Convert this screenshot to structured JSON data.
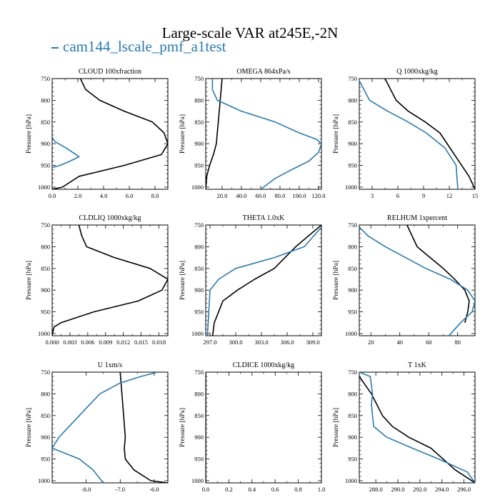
{
  "title": "Large-scale VAR at245E,-2N",
  "legend": {
    "label": "cam144_lscale_pmf_a1test",
    "color": "#2a7ab0"
  },
  "colors": {
    "black_series": "#000000",
    "blue_series": "#2a7ab0"
  },
  "chart_data": [
    {
      "type": "line",
      "title": "CLOUD  100xfraction",
      "ylabel": "Pressure [hPa]",
      "xlim": [
        0.0,
        9.0
      ],
      "ylim": [
        1005,
        750
      ],
      "xticks": [
        0.0,
        2.0,
        4.0,
        6.0,
        8.0
      ],
      "xtick_labels": [
        "0.0",
        "2.0",
        "4.0",
        "6.0",
        "8.0"
      ],
      "yticks": [
        750,
        800,
        850,
        900,
        950,
        1000
      ],
      "ytick_labels": [
        "750",
        "800",
        "850",
        "900",
        "950",
        "1000"
      ],
      "series": [
        {
          "name": "black",
          "color": "#000000",
          "x": [
            2.2,
            2.6,
            3.7,
            5.6,
            7.8,
            8.7,
            9.0,
            8.5,
            5.6,
            2.1,
            0.8,
            0.0
          ],
          "y": [
            750,
            775,
            800,
            825,
            850,
            875,
            900,
            925,
            950,
            975,
            1000,
            1005
          ]
        },
        {
          "name": "cam144_lscale_pmf_a1test",
          "color": "#2a7ab0",
          "x": [
            0.0,
            0.2,
            1.1,
            2.1,
            1.4,
            0.6,
            0.0
          ],
          "y": [
            885,
            895,
            910,
            930,
            940,
            950,
            955
          ]
        }
      ]
    },
    {
      "type": "line",
      "title": "OMEGA  864xPa/s",
      "ylabel": "Pressure [hPa]",
      "xlim": [
        3.0,
        123.0
      ],
      "ylim": [
        1005,
        750
      ],
      "xticks": [
        20.0,
        40.0,
        60.0,
        80.0,
        100.0,
        120.0
      ],
      "xtick_labels": [
        "20.0",
        "40.0",
        "60.0",
        "80.0",
        "100.0",
        "120.0"
      ],
      "yticks": [
        750,
        800,
        850,
        900,
        950,
        1000
      ],
      "ytick_labels": [
        "750",
        "800",
        "850",
        "900",
        "950",
        "1000"
      ],
      "series": [
        {
          "name": "black",
          "color": "#000000",
          "x": [
            20.0,
            18.0,
            16.0,
            15.0,
            14.0,
            11.0,
            7.0,
            4.0,
            3.0
          ],
          "y": [
            750,
            800,
            850,
            875,
            900,
            925,
            950,
            975,
            1005
          ]
        },
        {
          "name": "cam144_lscale_pmf_a1test",
          "color": "#2a7ab0",
          "x": [
            10.0,
            10.0,
            15.0,
            40.0,
            75.0,
            100.0,
            118.0,
            123.0,
            120.0,
            110.0,
            92.0,
            75.0,
            60.0
          ],
          "y": [
            750,
            775,
            800,
            825,
            850,
            875,
            890,
            900,
            920,
            940,
            960,
            980,
            1005
          ]
        }
      ]
    },
    {
      "type": "line",
      "title": "Q  1000xkg/kg",
      "ylabel": "Pressure [hPa]",
      "xlim": [
        1.5,
        15.0
      ],
      "ylim": [
        1005,
        750
      ],
      "xticks": [
        3,
        6,
        9,
        12,
        15
      ],
      "xtick_labels": [
        "3",
        "6",
        "9",
        "12",
        "15"
      ],
      "yticks": [
        750,
        800,
        850,
        900,
        950,
        1000
      ],
      "ytick_labels": [
        "750",
        "800",
        "850",
        "900",
        "950",
        "1000"
      ],
      "series": [
        {
          "name": "black",
          "color": "#000000",
          "x": [
            4.5,
            5.8,
            7.2,
            9.2,
            10.9,
            12.6,
            14.3,
            15.0
          ],
          "y": [
            750,
            800,
            825,
            850,
            875,
            925,
            975,
            1005
          ]
        },
        {
          "name": "cam144_lscale_pmf_a1test",
          "color": "#2a7ab0",
          "x": [
            1.5,
            2.7,
            4.8,
            7.2,
            9.3,
            11.5,
            12.8,
            12.9,
            13.0
          ],
          "y": [
            755,
            800,
            825,
            850,
            875,
            910,
            950,
            980,
            1005
          ]
        }
      ]
    },
    {
      "type": "line",
      "title": "CLDLIQ  1000xkg/kg",
      "ylabel": "Pressure [hPa]",
      "xlim": [
        0.0,
        0.0195
      ],
      "ylim": [
        1005,
        750
      ],
      "xticks": [
        0.0,
        0.003,
        0.006,
        0.009,
        0.012,
        0.015,
        0.018
      ],
      "xtick_labels": [
        "0.000",
        "0.003",
        "0.006",
        "0.009",
        "0.012",
        "0.015",
        "0.018"
      ],
      "yticks": [
        750,
        800,
        850,
        900,
        950,
        1000
      ],
      "ytick_labels": [
        "750",
        "800",
        "850",
        "900",
        "950",
        "1000"
      ],
      "series": [
        {
          "name": "black",
          "color": "#000000",
          "x": [
            0.0045,
            0.005,
            0.0058,
            0.0105,
            0.0165,
            0.0195,
            0.0185,
            0.0145,
            0.007,
            0.0015,
            0.0003,
            0.0
          ],
          "y": [
            750,
            775,
            800,
            825,
            850,
            875,
            900,
            925,
            950,
            975,
            985,
            1005
          ]
        }
      ]
    },
    {
      "type": "line",
      "title": "THETA  1.0xK",
      "ylabel": "Pressure [hPa]",
      "xlim": [
        296.5,
        310.0
      ],
      "ylim": [
        1005,
        750
      ],
      "xticks": [
        297.0,
        300.0,
        303.0,
        306.0,
        309.0
      ],
      "xtick_labels": [
        "297.0",
        "300.0",
        "303.0",
        "306.0",
        "309.0"
      ],
      "yticks": [
        750,
        800,
        850,
        900,
        950,
        1000
      ],
      "ytick_labels": [
        "750",
        "800",
        "850",
        "900",
        "950",
        "1000"
      ],
      "series": [
        {
          "name": "black",
          "color": "#000000",
          "x": [
            310.0,
            307.0,
            304.5,
            302.2,
            300.2,
            298.5,
            297.5,
            297.3
          ],
          "y": [
            750,
            800,
            850,
            875,
            900,
            925,
            975,
            1005
          ]
        },
        {
          "name": "cam144_lscale_pmf_a1test",
          "color": "#2a7ab0",
          "x": [
            310.0,
            308.0,
            304.5,
            300.0,
            298.0,
            297.0,
            296.7
          ],
          "y": [
            755,
            800,
            825,
            850,
            875,
            900,
            1005
          ]
        }
      ]
    },
    {
      "type": "line",
      "title": "RELHUM  1xpercent",
      "ylabel": "Pressure [hPa]",
      "xlim": [
        12.0,
        92.0
      ],
      "ylim": [
        1005,
        750
      ],
      "xticks": [
        20,
        40,
        60,
        80
      ],
      "xtick_labels": [
        "20",
        "40",
        "60",
        "80"
      ],
      "yticks": [
        750,
        800,
        850,
        900,
        950,
        1000
      ],
      "ytick_labels": [
        "750",
        "800",
        "850",
        "900",
        "950",
        "1000"
      ],
      "series": [
        {
          "name": "black",
          "color": "#000000",
          "x": [
            45.0,
            52.0,
            61.0,
            70.0,
            78.0,
            85.0,
            88.0,
            87.0,
            85.0
          ],
          "y": [
            750,
            800,
            825,
            850,
            875,
            900,
            925,
            950,
            975
          ]
        },
        {
          "name": "cam144_lscale_pmf_a1test",
          "color": "#2a7ab0",
          "x": [
            12.0,
            18.0,
            30.0,
            58.0,
            75.0,
            87.0,
            92.0,
            90.0,
            82.0,
            74.0
          ],
          "y": [
            755,
            775,
            800,
            850,
            875,
            900,
            925,
            950,
            975,
            1005
          ]
        }
      ]
    },
    {
      "type": "line",
      "title": "U  1xm/s",
      "ylabel": "Pressure [hPa]",
      "xlim": [
        -9.0,
        -5.6
      ],
      "ylim": [
        1005,
        750
      ],
      "xticks": [
        -8.0,
        -7.0,
        -6.0
      ],
      "xtick_labels": [
        "-8.0",
        "-7.0",
        "-6.0"
      ],
      "yticks": [
        750,
        800,
        850,
        900,
        950,
        1000
      ],
      "ytick_labels": [
        "750",
        "800",
        "850",
        "900",
        "950",
        "1000"
      ],
      "series": [
        {
          "name": "black",
          "color": "#000000",
          "x": [
            -7.0,
            -6.95,
            -6.9,
            -6.85,
            -6.88,
            -6.85,
            -6.6,
            -6.1,
            -5.6
          ],
          "y": [
            750,
            800,
            850,
            900,
            925,
            950,
            975,
            1000,
            1005
          ]
        },
        {
          "name": "cam144_lscale_pmf_a1test",
          "color": "#2a7ab0",
          "x": [
            -5.9,
            -6.4,
            -7.0,
            -7.6,
            -8.2,
            -8.8,
            -9.0,
            -8.2,
            -7.8,
            -7.5
          ],
          "y": [
            750,
            760,
            775,
            800,
            850,
            900,
            925,
            950,
            975,
            1005
          ]
        }
      ]
    },
    {
      "type": "line",
      "title": "CLDICE  1000xkg/kg",
      "ylabel": "Pressure [hPa]",
      "xlim": [
        0.0,
        1.0
      ],
      "ylim": [
        1005,
        750
      ],
      "xticks": [
        0.0,
        0.2,
        0.4,
        0.6,
        0.8,
        1.0
      ],
      "xtick_labels": [
        "0.0",
        "0.2",
        "0.4",
        "0.6",
        "0.8",
        "1.0"
      ],
      "yticks": [
        750,
        800,
        850,
        900,
        950,
        1000
      ],
      "ytick_labels": [
        "750",
        "800",
        "850",
        "900",
        "950",
        "1000"
      ],
      "series": [
        {
          "name": "black",
          "color": "#000000",
          "x": [
            0.0,
            0.0
          ],
          "y": [
            750,
            1005
          ]
        }
      ]
    },
    {
      "type": "line",
      "title": "T  1xK",
      "ylabel": "Pressure [hPa]",
      "xlim": [
        286.5,
        297.0
      ],
      "ylim": [
        1005,
        750
      ],
      "xticks": [
        288.0,
        290.0,
        292.0,
        294.0,
        296.0
      ],
      "xtick_labels": [
        "288.0",
        "290.0",
        "292.0",
        "294.0",
        "296.0"
      ],
      "yticks": [
        750,
        800,
        850,
        900,
        950,
        1000
      ],
      "ytick_labels": [
        "750",
        "800",
        "850",
        "900",
        "950",
        "1000"
      ],
      "series": [
        {
          "name": "black",
          "color": "#000000",
          "x": [
            286.5,
            287.6,
            288.6,
            289.5,
            291.0,
            293.0,
            295.2,
            297.0
          ],
          "y": [
            760,
            800,
            850,
            875,
            900,
            925,
            975,
            1005
          ]
        },
        {
          "name": "cam144_lscale_pmf_a1test",
          "color": "#2a7ab0",
          "x": [
            286.5,
            287.5,
            287.7,
            287.6,
            287.8,
            289.0,
            291.3,
            293.7,
            296.3,
            297.0
          ],
          "y": [
            750,
            760,
            800,
            825,
            875,
            900,
            925,
            950,
            980,
            1005
          ]
        }
      ]
    }
  ]
}
